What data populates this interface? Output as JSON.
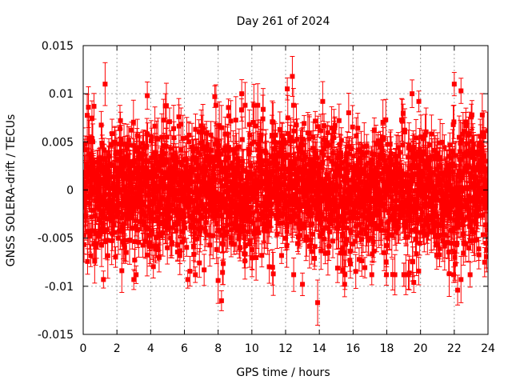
{
  "chart_data": {
    "type": "scatter",
    "title": "Day 261 of 2024",
    "xlabel": "GPS time / hours",
    "ylabel": "GNSS SOLERA-drift / TECUs",
    "xlim": [
      0,
      24
    ],
    "ylim": [
      -0.015,
      0.015
    ],
    "x_ticks": [
      0,
      2,
      4,
      6,
      8,
      10,
      12,
      14,
      16,
      18,
      20,
      22,
      24
    ],
    "y_ticks": [
      -0.015,
      -0.01,
      -0.005,
      0,
      0.005,
      0.01,
      0.015
    ],
    "x_tick_labels": [
      "0",
      "2",
      "4",
      "6",
      "8",
      "10",
      "12",
      "14",
      "16",
      "18",
      "20",
      "22",
      "24"
    ],
    "y_tick_labels": [
      "-0.015",
      "-0.01",
      "-0.005",
      "0",
      "0.005",
      "0.01",
      "0.015"
    ],
    "grid": true,
    "legend": "none",
    "series_color": "#ff0000",
    "marker": "filled-square",
    "error_bars": true,
    "point_spacing_hours": 0.01,
    "noise_sigma": 0.0033,
    "error_bar_halfwidth": [
      0.0008,
      0.0025
    ],
    "notable_points": [
      {
        "x": 1.3,
        "y": 0.011
      },
      {
        "x": 1.2,
        "y": -0.0093
      },
      {
        "x": 3.0,
        "y": -0.0093
      },
      {
        "x": 3.8,
        "y": 0.0098
      },
      {
        "x": 6.2,
        "y": -0.0093
      },
      {
        "x": 7.8,
        "y": 0.0097
      },
      {
        "x": 8.0,
        "y": -0.0094
      },
      {
        "x": 8.2,
        "y": -0.0115
      },
      {
        "x": 9.4,
        "y": 0.01
      },
      {
        "x": 12.4,
        "y": 0.0118
      },
      {
        "x": 12.1,
        "y": 0.0105
      },
      {
        "x": 13.0,
        "y": -0.0098
      },
      {
        "x": 13.9,
        "y": -0.0117
      },
      {
        "x": 14.2,
        "y": 0.0092
      },
      {
        "x": 15.5,
        "y": -0.0098
      },
      {
        "x": 19.5,
        "y": 0.01
      },
      {
        "x": 19.6,
        "y": -0.0096
      },
      {
        "x": 19.9,
        "y": 0.0092
      },
      {
        "x": 22.0,
        "y": 0.011
      },
      {
        "x": 22.4,
        "y": 0.0103
      },
      {
        "x": 22.2,
        "y": -0.0104
      },
      {
        "x": 22.4,
        "y": -0.0093
      },
      {
        "x": 21.7,
        "y": -0.0087
      },
      {
        "x": 23.8,
        "y": -0.0075
      }
    ]
  }
}
